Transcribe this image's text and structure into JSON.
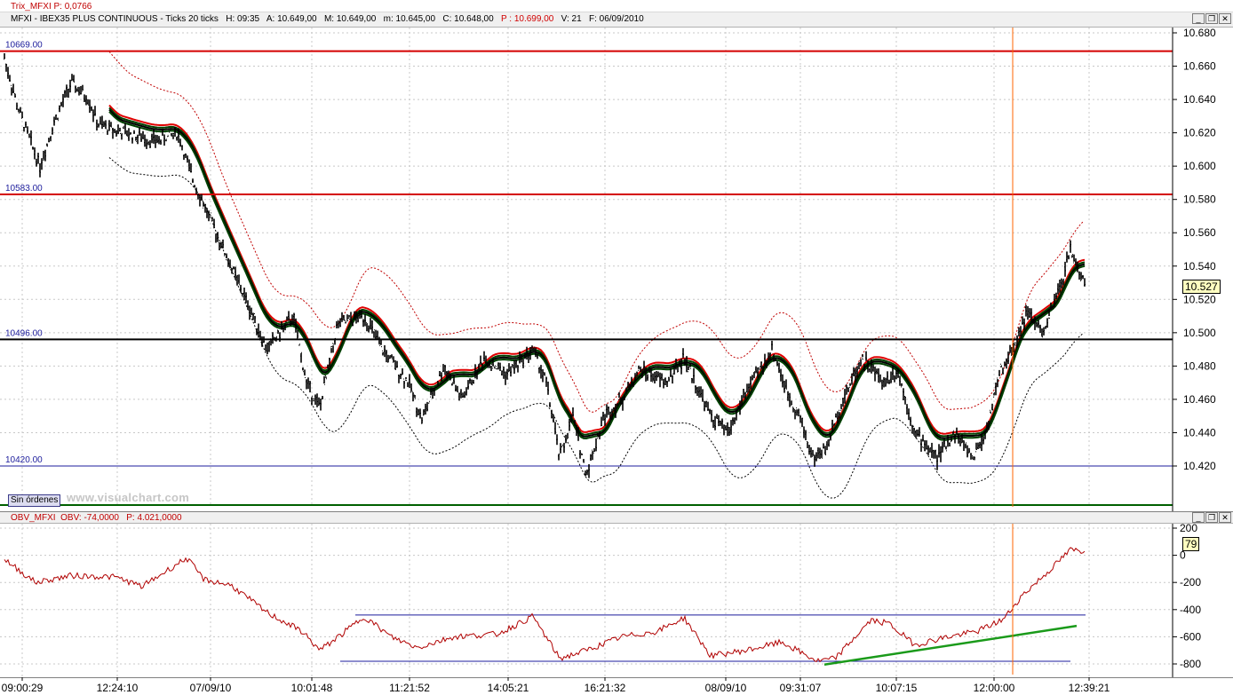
{
  "trix_label": "Trix_MFXI  P: 0,0766",
  "main_header": {
    "symbol": "MFXI - IBEX35 PLUS CONTINUOUS - Ticks 20 ticks",
    "H": "H: 09:35",
    "A": "A: 10.649,00",
    "M": "M: 10.649,00",
    "m": "m: 10.645,00",
    "C": "C: 10.648,00",
    "P": "P : 10.699,00",
    "V": "V: 21",
    "F": "F: 06/09/2010"
  },
  "obv_header": {
    "name": "OBV_MFXI",
    "obv": "OBV: -74,0000",
    "p": "P: 4.021,0000"
  },
  "levels": [
    {
      "label": "10669.00",
      "value": 10669,
      "color": "#d40000"
    },
    {
      "label": "10583.00",
      "value": 10583,
      "color": "#d40000"
    },
    {
      "label": "10496.00",
      "value": 10496,
      "color": "#000000"
    },
    {
      "label": "10420.00",
      "value": 10420,
      "color": "#1c1c9c"
    }
  ],
  "price_axis": [
    "10.680",
    "10.660",
    "10.640",
    "10.620",
    "10.600",
    "10.580",
    "10.560",
    "10.540",
    "10.520",
    "10.500",
    "10.480",
    "10.460",
    "10.440",
    "10.420"
  ],
  "last_price": "10.527",
  "obv_axis": [
    "200",
    "0",
    "-200",
    "-400",
    "-600",
    "-800"
  ],
  "obv_last": "79",
  "time_labels": [
    "09:00:29",
    "12:24:10",
    "07/09/10",
    "10:01:48",
    "11:21:52",
    "14:05:21",
    "16:21:32",
    "08/09/10",
    "09:31:07",
    "10:07:15",
    "12:00:00",
    "12:39:21"
  ],
  "orders_button": "Sin órdenes",
  "watermark": "www.visualchart.com",
  "colors": {
    "support_green": "#006000",
    "trend_green": "#1a9a1a",
    "ma_red": "#e00000",
    "ma_green": "#004000",
    "obv_red": "#b00000",
    "cursor": "#ff6600"
  }
}
